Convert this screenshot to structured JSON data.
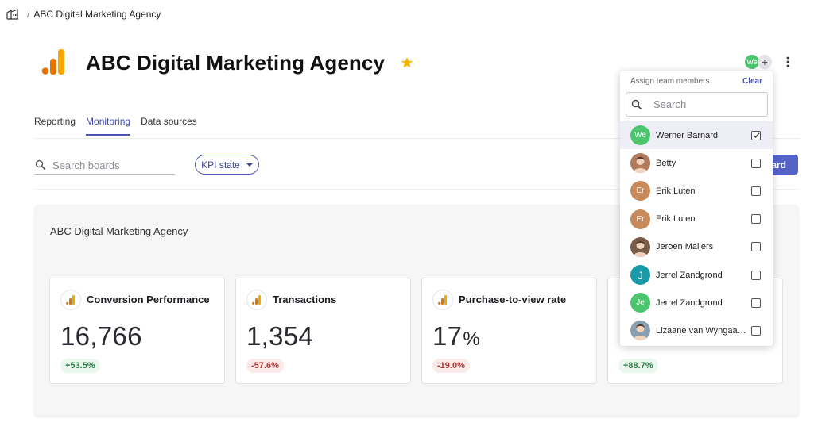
{
  "breadcrumb": {
    "home_icon": "building-icon",
    "separator": "/",
    "current": "ABC Digital Marketing Agency"
  },
  "header": {
    "title": "ABC Digital Marketing Agency",
    "star_color": "#f5b400",
    "logo_icon": "analytics-bars-icon"
  },
  "team": {
    "avatar_initials": "We",
    "add_symbol": "+"
  },
  "tabs": [
    {
      "label": "Reporting",
      "active": false
    },
    {
      "label": "Monitoring",
      "active": true
    },
    {
      "label": "Data sources",
      "active": false
    }
  ],
  "toolbar": {
    "search_placeholder": "Search boards",
    "kpi_state_label": "KPI state",
    "add_board_label": "oard"
  },
  "board": {
    "title": "ABC Digital Marketing Agency",
    "kebab": "⋮",
    "cards": [
      {
        "name": "Conversion Performance",
        "value": "16,766",
        "unit": "",
        "change": "+53.5%",
        "trend": "up"
      },
      {
        "name": "Transactions",
        "value": "1,354",
        "unit": "",
        "change": "-57.6%",
        "trend": "down"
      },
      {
        "name": "Purchase-to-view rate",
        "value": "17",
        "unit": "%",
        "change": "-19.0%",
        "trend": "down"
      },
      {
        "name": "",
        "value": "",
        "unit": "",
        "change": "+88.7%",
        "trend": "up"
      }
    ]
  },
  "dropdown": {
    "header_label": "Assign team members",
    "clear_label": "Clear",
    "search_placeholder": "Search",
    "members": [
      {
        "name": "Werner Barnard",
        "initials": "We",
        "color": "#4cc66e",
        "checked": true,
        "photo": false
      },
      {
        "name": "Betty",
        "initials": "",
        "color": "#b27a5a",
        "checked": false,
        "photo": true
      },
      {
        "name": "Erik Luten",
        "initials": "Er",
        "color": "#c88a5a",
        "checked": false,
        "photo": false
      },
      {
        "name": "Erik Luten",
        "initials": "Er",
        "color": "#c88a5a",
        "checked": false,
        "photo": false
      },
      {
        "name": "Jeroen Maljers",
        "initials": "",
        "color": "#7a5a48",
        "checked": false,
        "photo": true
      },
      {
        "name": "Jerrel Zandgrond",
        "initials": "J",
        "color": "#1a9aa8",
        "checked": false,
        "photo": false
      },
      {
        "name": "Jerrel Zandgrond",
        "initials": "Je",
        "color": "#4cc66e",
        "checked": false,
        "photo": false
      },
      {
        "name": "Lizaane van Wyngaa…",
        "initials": "",
        "color": "#8aa0b0",
        "checked": false,
        "photo": true
      }
    ]
  }
}
